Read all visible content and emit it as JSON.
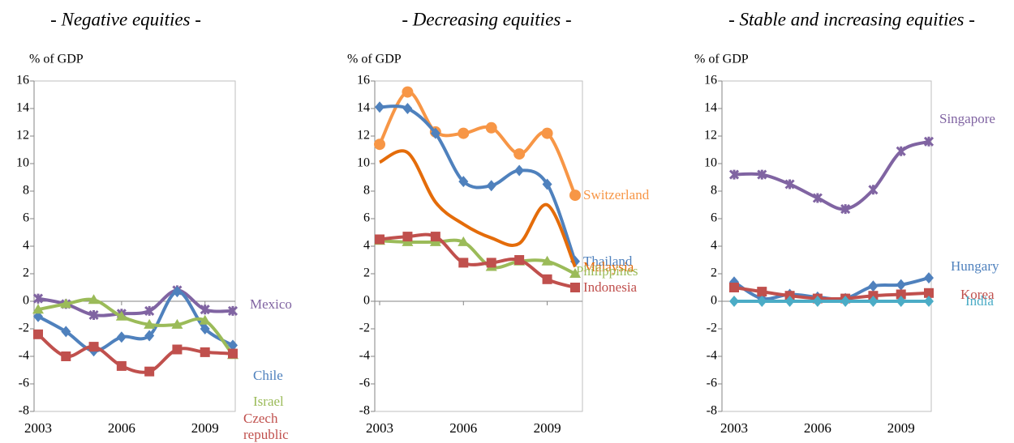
{
  "chart_data": [
    {
      "type": "line",
      "title": "- Negative equities -",
      "ylabel": "% of GDP",
      "x": [
        2003,
        2004,
        2005,
        2006,
        2007,
        2008,
        2009,
        2010
      ],
      "xlim": [
        2003,
        2010
      ],
      "xticks": [
        2003,
        2006,
        2009
      ],
      "ylim": [
        -8,
        16
      ],
      "yticks": [
        -8,
        -6,
        -4,
        -2,
        0,
        2,
        4,
        6,
        8,
        10,
        12,
        14,
        16
      ],
      "series": [
        {
          "name": "Mexico",
          "color": "#8064a2",
          "marker": "star",
          "values": [
            0.2,
            -0.2,
            -1.0,
            -0.9,
            -0.7,
            0.8,
            -0.6,
            -0.7
          ]
        },
        {
          "name": "Chile",
          "color": "#4f81bd",
          "marker": "diamond",
          "values": [
            -1.1,
            -2.2,
            -3.6,
            -2.6,
            -2.5,
            0.7,
            -2.0,
            -3.2
          ]
        },
        {
          "name": "Israel",
          "color": "#9bbb59",
          "marker": "triangle",
          "values": [
            -0.6,
            -0.2,
            0.1,
            -1.1,
            -1.7,
            -1.7,
            -1.4,
            -3.9
          ]
        },
        {
          "name": "Czech republic",
          "color": "#c0504d",
          "marker": "square",
          "values": [
            -2.4,
            -4.0,
            -3.3,
            -4.7,
            -5.1,
            -3.5,
            -3.7,
            -3.8
          ]
        }
      ]
    },
    {
      "type": "line",
      "title": "- Decreasing equities -",
      "ylabel": "% of GDP",
      "x": [
        2003,
        2004,
        2005,
        2006,
        2007,
        2008,
        2009,
        2010
      ],
      "xlim": [
        2003,
        2010
      ],
      "xticks": [
        2003,
        2006,
        2009
      ],
      "ylim": [
        -8,
        16
      ],
      "yticks": [
        -8,
        -6,
        -4,
        -2,
        0,
        2,
        4,
        6,
        8,
        10,
        12,
        14,
        16
      ],
      "series": [
        {
          "name": "Switzerland",
          "color": "#f79646",
          "marker": "circle",
          "values": [
            11.4,
            15.2,
            12.3,
            12.2,
            12.6,
            10.7,
            12.2,
            7.7
          ]
        },
        {
          "name": "Thailand",
          "color": "#4f81bd",
          "marker": "diamond",
          "values": [
            14.1,
            14.0,
            12.2,
            8.7,
            8.4,
            9.5,
            8.5,
            2.9
          ]
        },
        {
          "name": "Malaysia",
          "color": "#e46c0a",
          "marker": "none",
          "values": [
            10.1,
            10.8,
            7.2,
            5.6,
            4.6,
            4.2,
            7.0,
            2.5
          ]
        },
        {
          "name": "Philippines",
          "color": "#9bbb59",
          "marker": "triangle",
          "values": [
            4.4,
            4.3,
            4.3,
            4.3,
            2.5,
            2.9,
            2.9,
            2.0
          ]
        },
        {
          "name": "Indonesia",
          "color": "#c0504d",
          "marker": "square",
          "values": [
            4.5,
            4.7,
            4.7,
            2.8,
            2.8,
            3.0,
            1.6,
            1.0
          ]
        }
      ]
    },
    {
      "type": "line",
      "title": "- Stable and increasing equities -",
      "ylabel": "% of GDP",
      "x": [
        2003,
        2004,
        2005,
        2006,
        2007,
        2008,
        2009,
        2010
      ],
      "xlim": [
        2003,
        2010
      ],
      "xticks": [
        2003,
        2006,
        2009
      ],
      "ylim": [
        -8,
        16
      ],
      "yticks": [
        -8,
        -6,
        -4,
        -2,
        0,
        2,
        4,
        6,
        8,
        10,
        12,
        14,
        16
      ],
      "series": [
        {
          "name": "Singapore",
          "color": "#8064a2",
          "marker": "star",
          "values": [
            9.2,
            9.2,
            8.5,
            7.5,
            6.7,
            8.1,
            10.9,
            11.6
          ]
        },
        {
          "name": "Hungary",
          "color": "#4f81bd",
          "marker": "diamond",
          "values": [
            1.4,
            0.2,
            0.5,
            0.3,
            0.2,
            1.1,
            1.2,
            1.7
          ]
        },
        {
          "name": "Korea",
          "color": "#c0504d",
          "marker": "square",
          "values": [
            1.0,
            0.7,
            0.4,
            0.2,
            0.2,
            0.4,
            0.5,
            0.6
          ]
        },
        {
          "name": "India",
          "color": "#4bacc6",
          "marker": "diamond",
          "values": [
            0,
            0,
            0,
            0,
            0,
            0,
            0,
            0
          ]
        }
      ]
    }
  ]
}
